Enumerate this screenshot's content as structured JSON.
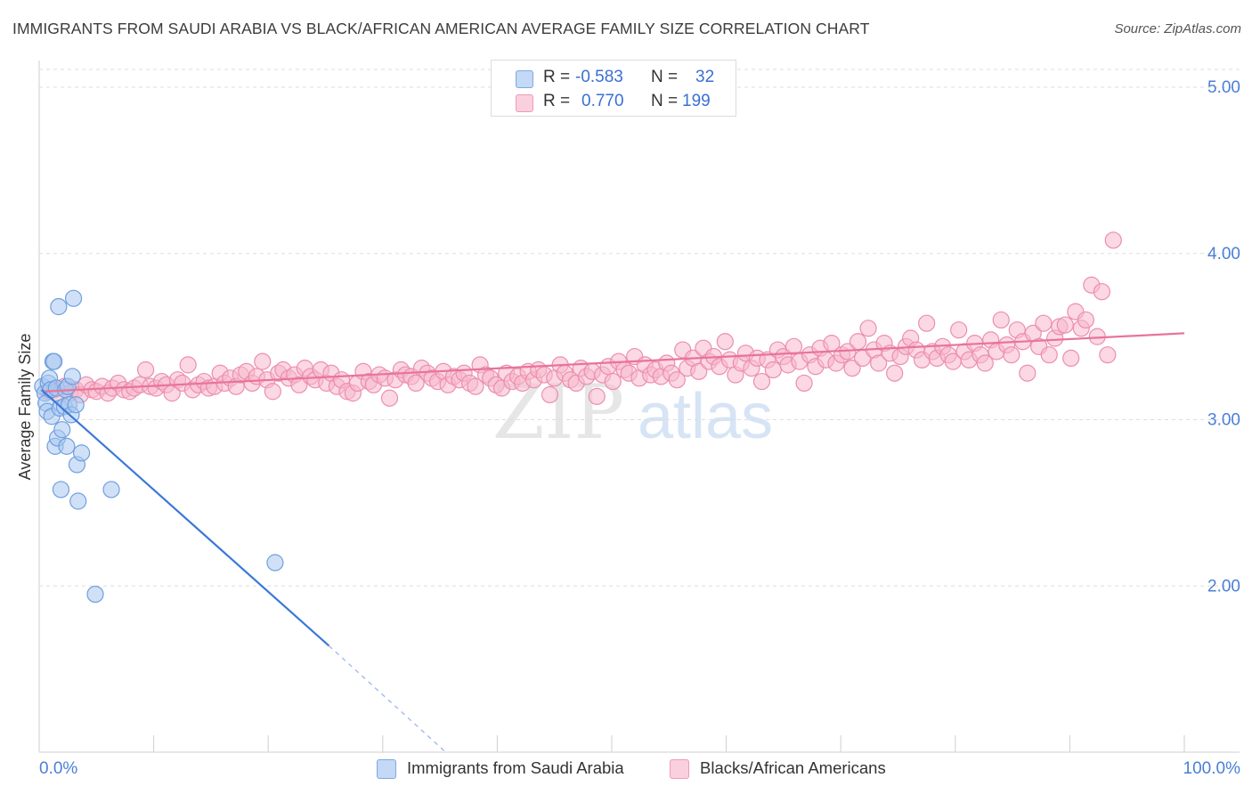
{
  "title": "IMMIGRANTS FROM SAUDI ARABIA VS BLACK/AFRICAN AMERICAN AVERAGE FAMILY SIZE CORRELATION CHART",
  "source": "Source: ZipAtlas.com",
  "watermark": {
    "zip": "ZIP",
    "atlas": "atlas"
  },
  "legend": {
    "r_label": "R =",
    "n_label": "N =",
    "rows": [
      {
        "r": "-0.583",
        "n": "32",
        "color": "#aac8f0"
      },
      {
        "r": "0.770",
        "n": "199",
        "color": "#f7b8cc"
      }
    ]
  },
  "bottom_legend": [
    {
      "label": "Immigrants from Saudi Arabia",
      "color": "#aac8f0"
    },
    {
      "label": "Blacks/African Americans",
      "color": "#f7b8cc"
    }
  ],
  "chart_data": {
    "type": "scatter",
    "title": "IMMIGRANTS FROM SAUDI ARABIA VS BLACK/AFRICAN AMERICAN AVERAGE FAMILY SIZE CORRELATION CHART",
    "xlabel": "",
    "ylabel": "Average Family Size",
    "xlim": [
      0,
      100
    ],
    "ylim": [
      1.0,
      5.15
    ],
    "x_tick_labels": [
      "0.0%",
      "100.0%"
    ],
    "y_ticks": [
      2.0,
      3.0,
      4.0,
      5.0
    ],
    "y_tick_labels": [
      "2.00",
      "3.00",
      "4.00",
      "5.00"
    ],
    "grid": "horizontal dashed",
    "series": [
      {
        "name": "Immigrants from Saudi Arabia",
        "color": "#aac8f0",
        "stroke": "#6f9fde",
        "line_color": "#3a78d8",
        "trend": {
          "x0": 0.2,
          "y0": 3.18,
          "x1": 25.3,
          "y1": 1.64,
          "dash_to_x": 35.5,
          "dash_to_y": 1.0
        },
        "points": [
          [
            0.3,
            3.2
          ],
          [
            0.5,
            3.16
          ],
          [
            0.6,
            3.1
          ],
          [
            0.7,
            3.05
          ],
          [
            0.8,
            3.22
          ],
          [
            0.9,
            3.25
          ],
          [
            1.0,
            3.18
          ],
          [
            1.1,
            3.02
          ],
          [
            1.2,
            3.35
          ],
          [
            1.3,
            3.35
          ],
          [
            1.4,
            2.84
          ],
          [
            1.5,
            3.19
          ],
          [
            1.6,
            2.89
          ],
          [
            1.7,
            3.68
          ],
          [
            1.8,
            3.07
          ],
          [
            1.9,
            2.58
          ],
          [
            2.0,
            2.94
          ],
          [
            2.2,
            3.08
          ],
          [
            2.3,
            3.18
          ],
          [
            2.5,
            3.2
          ],
          [
            2.4,
            2.84
          ],
          [
            2.6,
            3.09
          ],
          [
            2.8,
            3.03
          ],
          [
            2.9,
            3.26
          ],
          [
            3.0,
            3.73
          ],
          [
            3.2,
            3.09
          ],
          [
            3.3,
            2.73
          ],
          [
            3.4,
            2.51
          ],
          [
            3.7,
            2.8
          ],
          [
            4.9,
            1.95
          ],
          [
            6.3,
            2.58
          ],
          [
            20.6,
            2.14
          ]
        ]
      },
      {
        "name": "Blacks/African Americans",
        "color": "#f7b8cc",
        "stroke": "#ec8eae",
        "line_color": "#e8739b",
        "trend": {
          "x0": 0.5,
          "y0": 3.17,
          "x1": 100,
          "y1": 3.52
        },
        "points": [
          [
            0.8,
            3.17
          ],
          [
            1.3,
            3.18
          ],
          [
            1.8,
            3.15
          ],
          [
            2.2,
            3.2
          ],
          [
            2.7,
            3.16
          ],
          [
            3.2,
            3.18
          ],
          [
            3.6,
            3.15
          ],
          [
            4.1,
            3.21
          ],
          [
            4.6,
            3.18
          ],
          [
            5.0,
            3.17
          ],
          [
            5.5,
            3.2
          ],
          [
            6.0,
            3.16
          ],
          [
            6.4,
            3.19
          ],
          [
            6.9,
            3.22
          ],
          [
            7.4,
            3.18
          ],
          [
            7.9,
            3.17
          ],
          [
            8.3,
            3.19
          ],
          [
            8.8,
            3.21
          ],
          [
            9.3,
            3.3
          ],
          [
            9.7,
            3.2
          ],
          [
            10.2,
            3.19
          ],
          [
            10.7,
            3.23
          ],
          [
            11.1,
            3.21
          ],
          [
            11.6,
            3.16
          ],
          [
            12.1,
            3.24
          ],
          [
            12.5,
            3.22
          ],
          [
            13.0,
            3.33
          ],
          [
            13.4,
            3.18
          ],
          [
            13.9,
            3.21
          ],
          [
            14.4,
            3.23
          ],
          [
            14.8,
            3.19
          ],
          [
            15.3,
            3.2
          ],
          [
            15.8,
            3.28
          ],
          [
            16.2,
            3.22
          ],
          [
            16.7,
            3.25
          ],
          [
            17.2,
            3.2
          ],
          [
            17.6,
            3.27
          ],
          [
            18.1,
            3.29
          ],
          [
            18.6,
            3.22
          ],
          [
            19.0,
            3.26
          ],
          [
            19.5,
            3.35
          ],
          [
            19.9,
            3.24
          ],
          [
            20.4,
            3.17
          ],
          [
            20.9,
            3.28
          ],
          [
            21.3,
            3.3
          ],
          [
            21.8,
            3.25
          ],
          [
            22.3,
            3.27
          ],
          [
            22.7,
            3.21
          ],
          [
            23.2,
            3.31
          ],
          [
            23.7,
            3.26
          ],
          [
            24.1,
            3.24
          ],
          [
            24.6,
            3.3
          ],
          [
            25.1,
            3.22
          ],
          [
            25.5,
            3.28
          ],
          [
            26.0,
            3.2
          ],
          [
            26.4,
            3.24
          ],
          [
            26.9,
            3.17
          ],
          [
            27.4,
            3.16
          ],
          [
            27.8,
            3.22
          ],
          [
            28.3,
            3.29
          ],
          [
            28.8,
            3.23
          ],
          [
            29.2,
            3.21
          ],
          [
            29.7,
            3.27
          ],
          [
            30.2,
            3.25
          ],
          [
            30.6,
            3.13
          ],
          [
            31.1,
            3.24
          ],
          [
            31.6,
            3.3
          ],
          [
            32.0,
            3.27
          ],
          [
            32.5,
            3.26
          ],
          [
            32.9,
            3.22
          ],
          [
            33.4,
            3.31
          ],
          [
            33.9,
            3.28
          ],
          [
            34.3,
            3.25
          ],
          [
            34.8,
            3.23
          ],
          [
            35.3,
            3.29
          ],
          [
            35.7,
            3.21
          ],
          [
            36.2,
            3.26
          ],
          [
            36.7,
            3.24
          ],
          [
            37.1,
            3.28
          ],
          [
            37.6,
            3.22
          ],
          [
            38.1,
            3.2
          ],
          [
            38.5,
            3.33
          ],
          [
            39.0,
            3.27
          ],
          [
            39.4,
            3.25
          ],
          [
            39.9,
            3.21
          ],
          [
            40.4,
            3.19
          ],
          [
            40.8,
            3.28
          ],
          [
            41.3,
            3.23
          ],
          [
            41.8,
            3.26
          ],
          [
            42.2,
            3.22
          ],
          [
            42.7,
            3.29
          ],
          [
            43.2,
            3.24
          ],
          [
            43.6,
            3.3
          ],
          [
            44.1,
            3.27
          ],
          [
            44.6,
            3.15
          ],
          [
            45.0,
            3.25
          ],
          [
            45.5,
            3.33
          ],
          [
            45.9,
            3.28
          ],
          [
            46.4,
            3.24
          ],
          [
            46.9,
            3.22
          ],
          [
            47.3,
            3.31
          ],
          [
            47.8,
            3.26
          ],
          [
            48.3,
            3.29
          ],
          [
            48.7,
            3.14
          ],
          [
            49.2,
            3.27
          ],
          [
            49.7,
            3.32
          ],
          [
            50.1,
            3.23
          ],
          [
            50.6,
            3.35
          ],
          [
            51.1,
            3.3
          ],
          [
            51.5,
            3.28
          ],
          [
            52.0,
            3.38
          ],
          [
            52.4,
            3.25
          ],
          [
            52.9,
            3.33
          ],
          [
            53.4,
            3.27
          ],
          [
            53.8,
            3.3
          ],
          [
            54.3,
            3.26
          ],
          [
            54.8,
            3.34
          ],
          [
            55.2,
            3.28
          ],
          [
            55.7,
            3.24
          ],
          [
            56.2,
            3.42
          ],
          [
            56.6,
            3.31
          ],
          [
            57.1,
            3.37
          ],
          [
            57.6,
            3.29
          ],
          [
            58.0,
            3.43
          ],
          [
            58.5,
            3.35
          ],
          [
            58.9,
            3.38
          ],
          [
            59.4,
            3.32
          ],
          [
            59.9,
            3.47
          ],
          [
            60.3,
            3.36
          ],
          [
            60.8,
            3.27
          ],
          [
            61.3,
            3.34
          ],
          [
            61.7,
            3.4
          ],
          [
            62.2,
            3.31
          ],
          [
            62.7,
            3.37
          ],
          [
            63.1,
            3.23
          ],
          [
            63.6,
            3.36
          ],
          [
            64.1,
            3.3
          ],
          [
            64.5,
            3.42
          ],
          [
            65.0,
            3.38
          ],
          [
            65.4,
            3.33
          ],
          [
            65.9,
            3.44
          ],
          [
            66.4,
            3.35
          ],
          [
            66.8,
            3.22
          ],
          [
            67.3,
            3.39
          ],
          [
            67.8,
            3.32
          ],
          [
            68.2,
            3.43
          ],
          [
            68.7,
            3.36
          ],
          [
            69.2,
            3.46
          ],
          [
            69.6,
            3.34
          ],
          [
            70.1,
            3.39
          ],
          [
            70.6,
            3.41
          ],
          [
            71.0,
            3.31
          ],
          [
            71.5,
            3.47
          ],
          [
            71.9,
            3.37
          ],
          [
            72.4,
            3.55
          ],
          [
            72.9,
            3.42
          ],
          [
            73.3,
            3.34
          ],
          [
            73.8,
            3.46
          ],
          [
            74.3,
            3.4
          ],
          [
            74.7,
            3.28
          ],
          [
            75.2,
            3.38
          ],
          [
            75.7,
            3.44
          ],
          [
            76.1,
            3.49
          ],
          [
            76.6,
            3.42
          ],
          [
            77.1,
            3.36
          ],
          [
            77.5,
            3.58
          ],
          [
            78.0,
            3.41
          ],
          [
            78.4,
            3.37
          ],
          [
            78.9,
            3.44
          ],
          [
            79.4,
            3.39
          ],
          [
            79.8,
            3.35
          ],
          [
            80.3,
            3.54
          ],
          [
            80.8,
            3.41
          ],
          [
            81.2,
            3.36
          ],
          [
            81.7,
            3.46
          ],
          [
            82.2,
            3.39
          ],
          [
            82.6,
            3.34
          ],
          [
            83.1,
            3.48
          ],
          [
            83.6,
            3.41
          ],
          [
            84.0,
            3.6
          ],
          [
            84.5,
            3.45
          ],
          [
            84.9,
            3.39
          ],
          [
            85.4,
            3.54
          ],
          [
            85.9,
            3.47
          ],
          [
            86.3,
            3.28
          ],
          [
            86.8,
            3.52
          ],
          [
            87.3,
            3.44
          ],
          [
            87.7,
            3.58
          ],
          [
            88.2,
            3.39
          ],
          [
            88.7,
            3.49
          ],
          [
            89.1,
            3.56
          ],
          [
            89.6,
            3.57
          ],
          [
            90.1,
            3.37
          ],
          [
            90.5,
            3.65
          ],
          [
            91.0,
            3.55
          ],
          [
            91.4,
            3.6
          ],
          [
            91.9,
            3.81
          ],
          [
            92.4,
            3.5
          ],
          [
            92.8,
            3.77
          ],
          [
            93.3,
            3.39
          ],
          [
            93.8,
            4.08
          ]
        ]
      }
    ]
  }
}
